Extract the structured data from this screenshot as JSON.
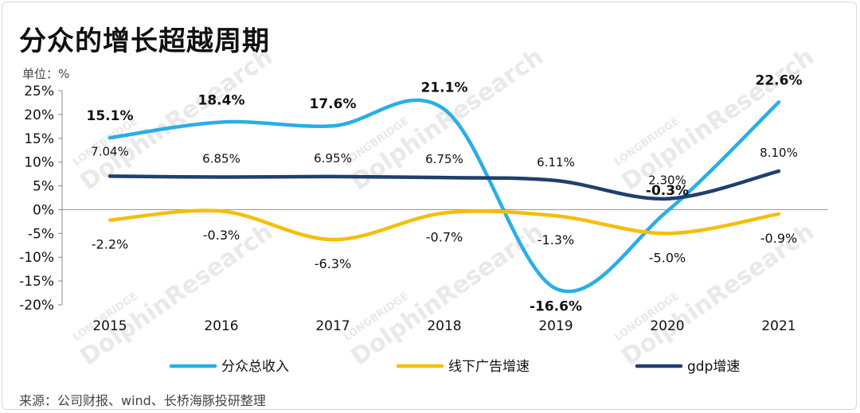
{
  "title": "分众的增长超越周期",
  "unit_label": "单位：%",
  "source": "来源：公司财报、wind、长桥海豚投研整理",
  "watermark": {
    "main": "DolphinResearch",
    "sub": "LONGBRIDGE"
  },
  "chart_data": {
    "type": "line",
    "title": "分众的增长超越周期",
    "xlabel": "",
    "ylabel": "单位：%",
    "categories": [
      "2015",
      "2016",
      "2017",
      "2018",
      "2019",
      "2020",
      "2021"
    ],
    "ylim": [
      -20,
      25
    ],
    "yticks": [
      25,
      20,
      15,
      10,
      5,
      0,
      -5,
      -10,
      -15,
      -20
    ],
    "ytick_labels": [
      "25%",
      "20%",
      "15%",
      "10%",
      "5%",
      "0%",
      "-5%",
      "-10%",
      "-15%",
      "-20%"
    ],
    "grid": false,
    "legend_position": "bottom",
    "series": [
      {
        "name": "分众总收入",
        "color": "#29aee6",
        "values": [
          15.1,
          18.4,
          17.6,
          21.1,
          -16.6,
          -0.3,
          22.6
        ],
        "labels": [
          "15.1%",
          "18.4%",
          "17.6%",
          "21.1%",
          "-16.6%",
          "-0.3%",
          "22.6%"
        ]
      },
      {
        "name": "线下广告增速",
        "color": "#f5be0b",
        "values": [
          -2.2,
          -0.3,
          -6.3,
          -0.7,
          -1.3,
          -5.0,
          -0.9
        ],
        "labels": [
          "-2.2%",
          "-0.3%",
          "-6.3%",
          "-0.7%",
          "-1.3%",
          "-5.0%",
          "-0.9%"
        ]
      },
      {
        "name": "gdp增速",
        "color": "#1f3f6e",
        "values": [
          7.04,
          6.85,
          6.95,
          6.75,
          6.11,
          2.3,
          8.1
        ],
        "labels": [
          "7.04%",
          "6.85%",
          "6.95%",
          "6.75%",
          "6.11%",
          "2.30%",
          "8.10%"
        ]
      }
    ]
  }
}
